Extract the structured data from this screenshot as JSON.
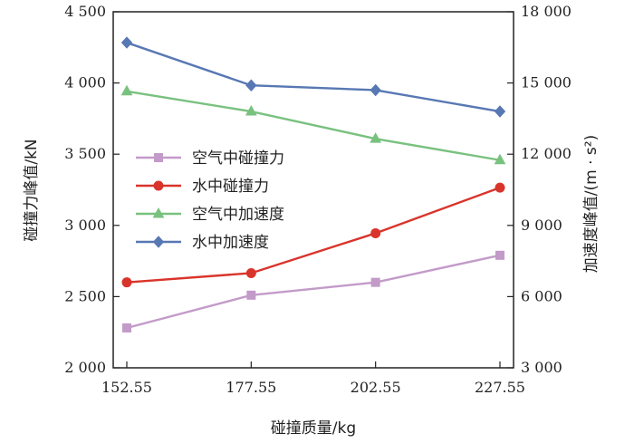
{
  "chart_data": {
    "type": "line",
    "x": [
      "152.55",
      "177.55",
      "202.55",
      "227.55"
    ],
    "xlabel": "碰撞质量/kg",
    "ylabel_left": "碰撞力峰值/kN",
    "ylabel_right": "加速度峰值/(m · s²)",
    "ylim_left": [
      2000,
      4500
    ],
    "ylim_right": [
      3000,
      18000
    ],
    "yticks_left": [
      2000,
      2500,
      3000,
      3500,
      4000,
      4500
    ],
    "yticks_left_labels": [
      "2 000",
      "2 500",
      "3 000",
      "3 500",
      "4 000",
      "4 500"
    ],
    "yticks_right": [
      3000,
      6000,
      9000,
      12000,
      15000,
      18000
    ],
    "yticks_right_labels": [
      "3 000",
      "6 000",
      "9 000",
      "12 000",
      "15 000",
      "18 000"
    ],
    "legend_position": "center-left",
    "grid": false,
    "series": [
      {
        "name": "空气中碰撞力",
        "axis": "left",
        "values": [
          2280,
          2510,
          2600,
          2790
        ],
        "color": "#c39bc9",
        "marker": "square"
      },
      {
        "name": "水中碰撞力",
        "axis": "left",
        "values": [
          2600,
          2665,
          2945,
          3265
        ],
        "color": "#d9342b",
        "marker": "circle"
      },
      {
        "name": "空气中加速度",
        "axis": "right",
        "values": [
          14650,
          13800,
          12650,
          11750
        ],
        "color": "#79c17f",
        "marker": "triangle"
      },
      {
        "name": "水中加速度",
        "axis": "right",
        "values": [
          16700,
          14900,
          14700,
          13800
        ],
        "color": "#5878b3",
        "marker": "diamond"
      }
    ]
  }
}
